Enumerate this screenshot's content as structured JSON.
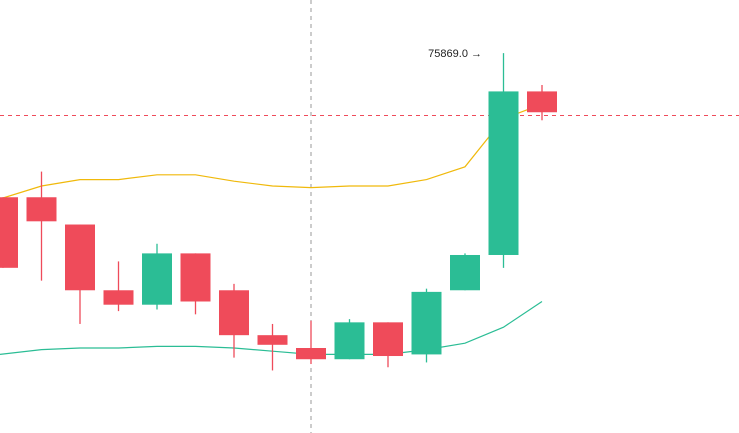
{
  "chart_data": {
    "type": "candlestick",
    "price_range": [
      73500,
      76200
    ],
    "candles": [
      {
        "open": 74970,
        "close": 74530,
        "high": 74970,
        "low": 74530
      },
      {
        "open": 74970,
        "close": 74820,
        "high": 75130,
        "low": 74450
      },
      {
        "open": 74800,
        "close": 74390,
        "high": 74800,
        "low": 74180
      },
      {
        "open": 74390,
        "close": 74300,
        "high": 74570,
        "low": 74260
      },
      {
        "open": 74300,
        "close": 74620,
        "high": 74680,
        "low": 74270
      },
      {
        "open": 74620,
        "close": 74320,
        "high": 74620,
        "low": 74240
      },
      {
        "open": 74390,
        "close": 74110,
        "high": 74430,
        "low": 73970
      },
      {
        "open": 74110,
        "close": 74050,
        "high": 74180,
        "low": 73890
      },
      {
        "open": 74030,
        "close": 73960,
        "high": 74200,
        "low": 73930
      },
      {
        "open": 73960,
        "close": 74190,
        "high": 74210,
        "low": 73960
      },
      {
        "open": 74190,
        "close": 73980,
        "high": 74190,
        "low": 73910
      },
      {
        "open": 73990,
        "close": 74380,
        "high": 74400,
        "low": 73940
      },
      {
        "open": 74390,
        "close": 74610,
        "high": 74620,
        "low": 74390
      },
      {
        "open": 74610,
        "close": 75630,
        "high": 75869.0,
        "low": 74530
      },
      {
        "open": 75630,
        "close": 75500,
        "high": 75670,
        "low": 75450
      }
    ],
    "upper_line": [
      74960,
      75040,
      75080,
      75080,
      75110,
      75110,
      75070,
      75040,
      75030,
      75040,
      75040,
      75080,
      75160,
      75460,
      75550
    ],
    "lower_line": [
      73990,
      74020,
      74030,
      74030,
      74040,
      74040,
      74030,
      74010,
      73990,
      73990,
      73990,
      74020,
      74060,
      74160,
      74320
    ],
    "annotation": {
      "label": "75869.0",
      "arrow": "→",
      "value": 75869.0
    },
    "crosshair": {
      "candle_index": 8,
      "price": 75480
    },
    "colors": {
      "up": "#2bbd95",
      "down": "#ef4b5a",
      "upper_line": "#f0b90b",
      "lower_line": "#2bbd95",
      "crosshair": "#999999",
      "price_line": "#ef4b5a"
    },
    "grid": false
  }
}
